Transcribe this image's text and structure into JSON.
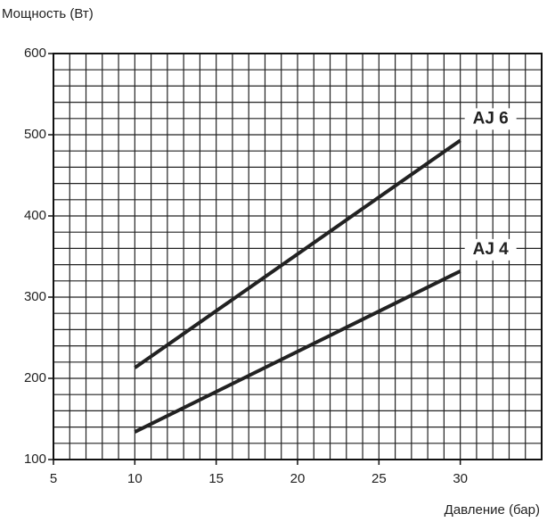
{
  "chart_data": {
    "type": "line",
    "y_label": "Мощность (Вт)",
    "x_label": "Давление (бар)",
    "series": [
      {
        "name": "AJ 6",
        "color": "#222222",
        "x": [
          10,
          30
        ],
        "values": [
          213,
          493
        ]
      },
      {
        "name": "AJ 4",
        "color": "#222222",
        "x": [
          10,
          30
        ],
        "values": [
          134,
          332
        ]
      }
    ],
    "xlim": [
      5,
      35
    ],
    "xticks": [
      5,
      10,
      15,
      20,
      25,
      30
    ],
    "ylim": [
      100,
      600
    ],
    "yticks": [
      100,
      200,
      300,
      400,
      500,
      600
    ],
    "minor_xticks": [
      5,
      6,
      7,
      8,
      9,
      10,
      11,
      12,
      13,
      14,
      15,
      16,
      17,
      18,
      19,
      20,
      21,
      22,
      23,
      24,
      25,
      26,
      27,
      28,
      29,
      30,
      31,
      32,
      33,
      34,
      35
    ],
    "minor_yticks": [
      100,
      120,
      140,
      160,
      180,
      200,
      220,
      240,
      260,
      280,
      300,
      320,
      340,
      360,
      380,
      400,
      420,
      440,
      460,
      480,
      500,
      520,
      540,
      560,
      580,
      600
    ],
    "grid": true
  }
}
